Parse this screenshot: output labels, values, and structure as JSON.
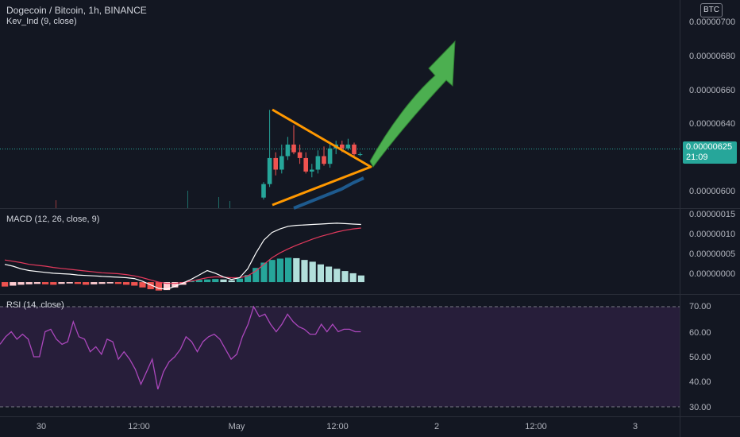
{
  "header": {
    "symbol_title": "Dogecoin / Bitcoin, 1h, BINANCE",
    "indicator": "Kev_Ind  (9, close)",
    "currency_badge": "BTC"
  },
  "price_axis": {
    "ticks": [
      "0.00000700",
      "0.00000680",
      "0.00000660",
      "0.00000640",
      "0.00000600"
    ],
    "current_price": "0.00000625",
    "countdown": "21:09"
  },
  "macd_pane": {
    "title": "MACD (12, 26, close, 9)",
    "ticks": [
      "0.00000015",
      "0.00000010",
      "0.00000005",
      "0.00000000"
    ]
  },
  "rsi_pane": {
    "title": "RSI (14, close)",
    "ticks": [
      "70.00",
      "60.00",
      "50.00",
      "40.00",
      "30.00"
    ]
  },
  "time_axis": {
    "ticks": [
      "30",
      "12:00",
      "May",
      "12:00",
      "2",
      "12:00",
      "3"
    ]
  },
  "colors": {
    "background": "#131722",
    "up": "#26a69a",
    "down": "#ef5350",
    "triangle": "#ff9800",
    "arrow": "#4caf50",
    "rsi": "#ab47bc"
  },
  "chart_data": [
    {
      "type": "candlestick",
      "title": "Dogecoin / Bitcoin, 1h, BINANCE",
      "ylim": [
        5.97e-06,
        7.05e-06
      ],
      "candles": [
        {
          "o": 6.025e-06,
          "h": 6.105e-06,
          "l": 6.015e-06,
          "c": 6.095e-06
        },
        {
          "o": 6.095e-06,
          "h": 6.48e-06,
          "l": 6.08e-06,
          "c": 6.23e-06
        },
        {
          "o": 6.23e-06,
          "h": 6.26e-06,
          "l": 6.14e-06,
          "c": 6.17e-06
        },
        {
          "o": 6.17e-06,
          "h": 6.3e-06,
          "l": 6.15e-06,
          "c": 6.24e-06
        },
        {
          "o": 6.24e-06,
          "h": 6.34e-06,
          "l": 6.22e-06,
          "c": 6.3e-06
        },
        {
          "o": 6.3e-06,
          "h": 6.4e-06,
          "l": 6.25e-06,
          "c": 6.26e-06
        },
        {
          "o": 6.26e-06,
          "h": 6.3e-06,
          "l": 6.2e-06,
          "c": 6.23e-06
        },
        {
          "o": 6.23e-06,
          "h": 6.26e-06,
          "l": 6.15e-06,
          "c": 6.16e-06
        },
        {
          "o": 6.16e-06,
          "h": 6.2e-06,
          "l": 6.13e-06,
          "c": 6.17e-06
        },
        {
          "o": 6.17e-06,
          "h": 6.27e-06,
          "l": 6.15e-06,
          "c": 6.24e-06
        },
        {
          "o": 6.24e-06,
          "h": 6.29e-06,
          "l": 6.19e-06,
          "c": 6.2e-06
        },
        {
          "o": 6.2e-06,
          "h": 6.3e-06,
          "l": 6.18e-06,
          "c": 6.28e-06
        },
        {
          "o": 6.28e-06,
          "h": 6.32e-06,
          "l": 6.25e-06,
          "c": 6.3e-06
        },
        {
          "o": 6.3e-06,
          "h": 6.32e-06,
          "l": 6.26e-06,
          "c": 6.28e-06
        },
        {
          "o": 6.28e-06,
          "h": 6.33e-06,
          "l": 6.27e-06,
          "c": 6.3e-06
        },
        {
          "o": 6.3e-06,
          "h": 6.31e-06,
          "l": 6.24e-06,
          "c": 6.25e-06
        },
        {
          "o": 6.25e-06,
          "h": 6.26e-06,
          "l": 6.24e-06,
          "c": 6.25e-06
        }
      ]
    },
    {
      "type": "bar",
      "title": "MACD (12, 26, close, 9)",
      "ylim": [
        -2.5e-08,
        1.65e-07
      ],
      "values": [
        -1e-08,
        -8e-09,
        -6e-09,
        -5e-09,
        -4e-09,
        -5e-09,
        -6e-09,
        -4e-09,
        -3e-09,
        -4e-09,
        -6e-09,
        -5e-09,
        -4e-09,
        -3e-09,
        -4e-09,
        -6e-09,
        -8e-09,
        -1.2e-08,
        -1.6e-08,
        -1.9e-08,
        -1.8e-08,
        -1.2e-08,
        -6e-09,
        2e-09,
        5e-09,
        6e-09,
        7e-09,
        6e-09,
        4e-09,
        8e-09,
        1.6e-08,
        3.2e-08,
        4.4e-08,
        5e-08,
        5.3e-08,
        5.5e-08,
        5.4e-08,
        5e-08,
        4.6e-08,
        4e-08,
        3.5e-08,
        3e-08,
        2.5e-08,
        2e-08,
        1.5e-08
      ],
      "macd_line": [
        4e-08,
        3.6e-08,
        3e-08,
        2.6e-08,
        2.4e-08,
        2.2e-08,
        2e-08,
        1.9e-08,
        1.8e-08,
        1.6e-08,
        1.5e-08,
        1.4e-08,
        1.3e-08,
        1.2e-08,
        1.1e-08,
        1e-08,
        8e-09,
        2e-09,
        -6e-09,
        -1.4e-08,
        -1.6e-08,
        -1e-08,
        -2e-09,
        6e-09,
        1.6e-08,
        2.6e-08,
        2e-08,
        1.2e-08,
        6e-09,
        1e-08,
        3e-08,
        6.5e-08,
        9.5e-08,
        1.12e-07,
        1.2e-07,
        1.26e-07,
        1.28e-07,
        1.29e-07,
        1.3e-07,
        1.31e-07,
        1.32e-07,
        1.33e-07,
        1.32e-07,
        1.31e-07,
        1.3e-07
      ],
      "signal_line": [
        5e-08,
        4.7e-08,
        4.4e-08,
        4e-08,
        3.8e-08,
        3.6e-08,
        3.3e-08,
        3.1e-08,
        2.9e-08,
        2.7e-08,
        2.5e-08,
        2.3e-08,
        2.1e-08,
        2e-08,
        1.9e-08,
        1.7e-08,
        1.4e-08,
        1e-08,
        5e-09,
        0.0,
        -3e-09,
        -3e-09,
        -1e-09,
        2e-09,
        6e-09,
        1e-08,
        1.2e-08,
        1.1e-08,
        1e-08,
        1e-08,
        1.4e-08,
        2.5e-08,
        4e-08,
        5.5e-08,
        6.6e-08,
        7.5e-08,
        8.3e-08,
        9e-08,
        9.7e-08,
        1.03e-07,
        1.08e-07,
        1.13e-07,
        1.17e-07,
        1.2e-07,
        1.22e-07
      ]
    },
    {
      "type": "line",
      "title": "RSI (14, close)",
      "ylim": [
        28,
        72
      ],
      "bands": [
        30,
        70
      ],
      "values": [
        55,
        58,
        60,
        57,
        59,
        57,
        50,
        50,
        60,
        61,
        57,
        55,
        56,
        64,
        58,
        57,
        52,
        54,
        51,
        57,
        56,
        49,
        52,
        49,
        45,
        39,
        44,
        49,
        37,
        44,
        48,
        50,
        53,
        58,
        56,
        52,
        56,
        58,
        59,
        57,
        53,
        49,
        51,
        58,
        63,
        70,
        66,
        67,
        63,
        60,
        63,
        67,
        64,
        62,
        61,
        59,
        59,
        63,
        60,
        63,
        60,
        61,
        61,
        60,
        60
      ]
    }
  ]
}
